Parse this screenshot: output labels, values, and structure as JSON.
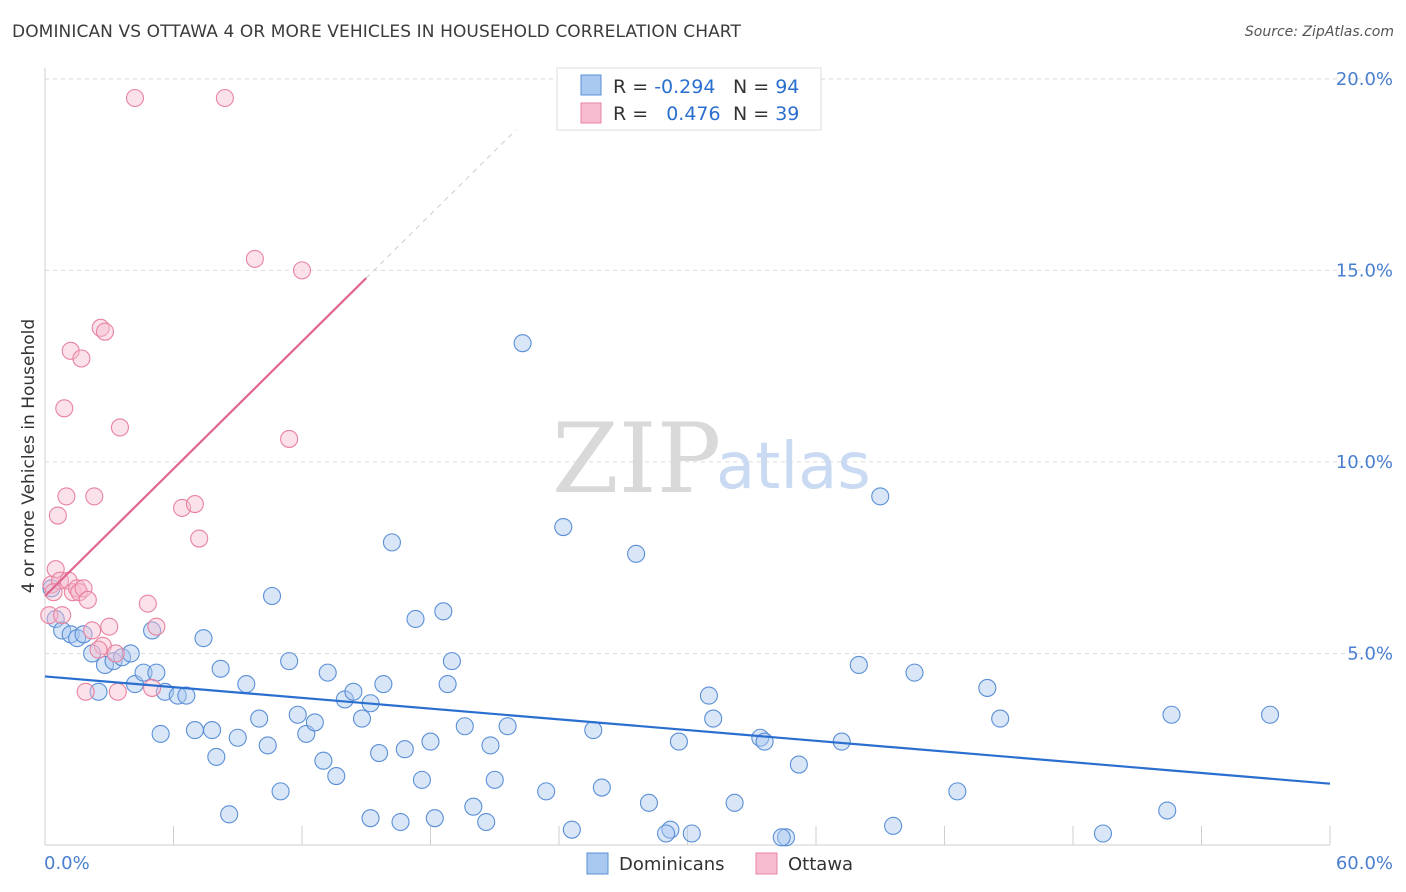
{
  "header": {
    "title": "DOMINICAN VS OTTAWA 4 OR MORE VEHICLES IN HOUSEHOLD CORRELATION CHART",
    "source": "Source: ZipAtlas.com"
  },
  "watermark": {
    "zip": "ZIP",
    "atlas": "atlas"
  },
  "legend": {
    "rows": [
      {
        "r_label": "R = ",
        "r_value": "-0.294",
        "n_label": "N = ",
        "n_value": "94"
      },
      {
        "r_label": "R = ",
        "r_value": "0.476",
        "n_label": "N = ",
        "n_value": "39"
      }
    ]
  },
  "colors": {
    "dominicans_fill": "#a9c8f0",
    "dominicans_stroke": "#5b8fd6",
    "dominicans_line": "#2a6fcf",
    "ottawa_fill": "#f7bcd0",
    "ottawa_stroke": "#e8839f",
    "ottawa_line": "#e0668f",
    "tick_text": "#4a7fd0",
    "grid": "#dcdcdc"
  },
  "chart_data": {
    "type": "scatter",
    "title": "DOMINICAN VS OTTAWA 4 OR MORE VEHICLES IN HOUSEHOLD CORRELATION CHART",
    "xlabel": "",
    "ylabel": "4 or more Vehicles in Household",
    "xlim": [
      0,
      60
    ],
    "ylim": [
      0,
      20.5
    ],
    "x_tick_labels": [
      "0.0%",
      "60.0%"
    ],
    "y_ticks": [
      5,
      10,
      15,
      20
    ],
    "y_tick_labels": [
      "5.0%",
      "10.0%",
      "15.0%",
      "20.0%"
    ],
    "grid": true,
    "legend_position": "top-center",
    "series": [
      {
        "name": "Dominicans",
        "r": -0.294,
        "n": 94,
        "trend": {
          "x": [
            0,
            60
          ],
          "y": [
            4.4,
            1.6
          ]
        },
        "points": [
          [
            0.3,
            6.7
          ],
          [
            0.5,
            5.9
          ],
          [
            0.8,
            5.6
          ],
          [
            1.2,
            5.5
          ],
          [
            1.5,
            5.4
          ],
          [
            1.8,
            5.5
          ],
          [
            2.2,
            5.0
          ],
          [
            2.5,
            4.0
          ],
          [
            2.8,
            4.7
          ],
          [
            3.2,
            4.8
          ],
          [
            3.6,
            4.9
          ],
          [
            4.0,
            5.0
          ],
          [
            4.2,
            4.2
          ],
          [
            4.6,
            4.5
          ],
          [
            5.0,
            5.6
          ],
          [
            5.2,
            4.5
          ],
          [
            5.6,
            4.0
          ],
          [
            6.2,
            3.9
          ],
          [
            6.6,
            3.9
          ],
          [
            7.0,
            3.0
          ],
          [
            7.4,
            5.4
          ],
          [
            7.8,
            3.0
          ],
          [
            8.0,
            2.3
          ],
          [
            8.2,
            4.6
          ],
          [
            8.6,
            0.8
          ],
          [
            9.0,
            2.8
          ],
          [
            9.4,
            4.2
          ],
          [
            10.0,
            3.3
          ],
          [
            10.4,
            2.6
          ],
          [
            10.6,
            6.5
          ],
          [
            11.0,
            1.4
          ],
          [
            11.4,
            4.8
          ],
          [
            11.8,
            3.4
          ],
          [
            12.2,
            2.9
          ],
          [
            12.6,
            3.2
          ],
          [
            13.0,
            2.2
          ],
          [
            13.2,
            4.5
          ],
          [
            13.6,
            1.8
          ],
          [
            14.0,
            3.8
          ],
          [
            14.4,
            4.0
          ],
          [
            14.8,
            3.3
          ],
          [
            15.2,
            3.7
          ],
          [
            15.2,
            0.7
          ],
          [
            15.6,
            2.4
          ],
          [
            15.8,
            4.2
          ],
          [
            16.2,
            7.9
          ],
          [
            16.6,
            0.6
          ],
          [
            16.8,
            2.5
          ],
          [
            17.3,
            5.9
          ],
          [
            17.6,
            1.7
          ],
          [
            18.0,
            2.7
          ],
          [
            18.2,
            0.7
          ],
          [
            18.6,
            6.1
          ],
          [
            18.8,
            4.2
          ],
          [
            19.0,
            4.8
          ],
          [
            19.6,
            3.1
          ],
          [
            20.0,
            1.0
          ],
          [
            20.6,
            0.6
          ],
          [
            20.8,
            2.6
          ],
          [
            21.0,
            1.7
          ],
          [
            21.6,
            3.1
          ],
          [
            22.3,
            13.1
          ],
          [
            23.4,
            1.4
          ],
          [
            24.2,
            8.3
          ],
          [
            24.6,
            0.4
          ],
          [
            25.6,
            3.0
          ],
          [
            26.0,
            1.5
          ],
          [
            27.6,
            7.6
          ],
          [
            28.2,
            1.1
          ],
          [
            29.2,
            0.4
          ],
          [
            29.6,
            2.7
          ],
          [
            30.2,
            0.3
          ],
          [
            31.0,
            3.9
          ],
          [
            31.2,
            3.3
          ],
          [
            32.2,
            1.1
          ],
          [
            33.4,
            2.8
          ],
          [
            33.6,
            2.7
          ],
          [
            34.6,
            0.2
          ],
          [
            35.2,
            2.1
          ],
          [
            37.2,
            2.7
          ],
          [
            38.0,
            4.7
          ],
          [
            39.0,
            9.1
          ],
          [
            39.6,
            0.5
          ],
          [
            40.6,
            4.5
          ],
          [
            42.6,
            1.4
          ],
          [
            44.0,
            4.1
          ],
          [
            44.6,
            3.3
          ],
          [
            49.4,
            0.3
          ],
          [
            52.4,
            0.9
          ],
          [
            52.6,
            3.4
          ],
          [
            57.2,
            3.4
          ],
          [
            29.0,
            0.3
          ],
          [
            34.4,
            0.2
          ],
          [
            5.4,
            2.9
          ]
        ]
      },
      {
        "name": "Ottawa",
        "r": 0.476,
        "n": 39,
        "trend": {
          "x": [
            0,
            15
          ],
          "y": [
            6.5,
            14.8
          ]
        },
        "points": [
          [
            0.2,
            6.0
          ],
          [
            0.3,
            6.8
          ],
          [
            0.5,
            7.2
          ],
          [
            0.6,
            8.6
          ],
          [
            0.7,
            6.9
          ],
          [
            0.8,
            6.0
          ],
          [
            0.9,
            11.4
          ],
          [
            1.0,
            9.1
          ],
          [
            1.1,
            6.9
          ],
          [
            1.2,
            12.9
          ],
          [
            1.3,
            6.6
          ],
          [
            1.5,
            6.7
          ],
          [
            1.6,
            6.6
          ],
          [
            1.7,
            12.7
          ],
          [
            1.8,
            6.7
          ],
          [
            1.9,
            4.0
          ],
          [
            2.0,
            6.4
          ],
          [
            2.2,
            5.6
          ],
          [
            2.3,
            9.1
          ],
          [
            2.6,
            13.5
          ],
          [
            2.7,
            5.2
          ],
          [
            2.8,
            13.4
          ],
          [
            3.0,
            5.7
          ],
          [
            3.3,
            5.0
          ],
          [
            3.4,
            4.0
          ],
          [
            3.5,
            10.9
          ],
          [
            4.2,
            19.5
          ],
          [
            4.8,
            6.3
          ],
          [
            5.0,
            4.1
          ],
          [
            5.2,
            5.7
          ],
          [
            6.4,
            8.8
          ],
          [
            7.0,
            8.9
          ],
          [
            7.2,
            8.0
          ],
          [
            9.8,
            15.3
          ],
          [
            11.4,
            10.6
          ],
          [
            12.0,
            15.0
          ],
          [
            8.4,
            19.5
          ],
          [
            0.4,
            6.6
          ],
          [
            2.5,
            5.1
          ]
        ]
      }
    ]
  },
  "bottom_legend": [
    {
      "label": "Dominicans"
    },
    {
      "label": "Ottawa"
    }
  ]
}
